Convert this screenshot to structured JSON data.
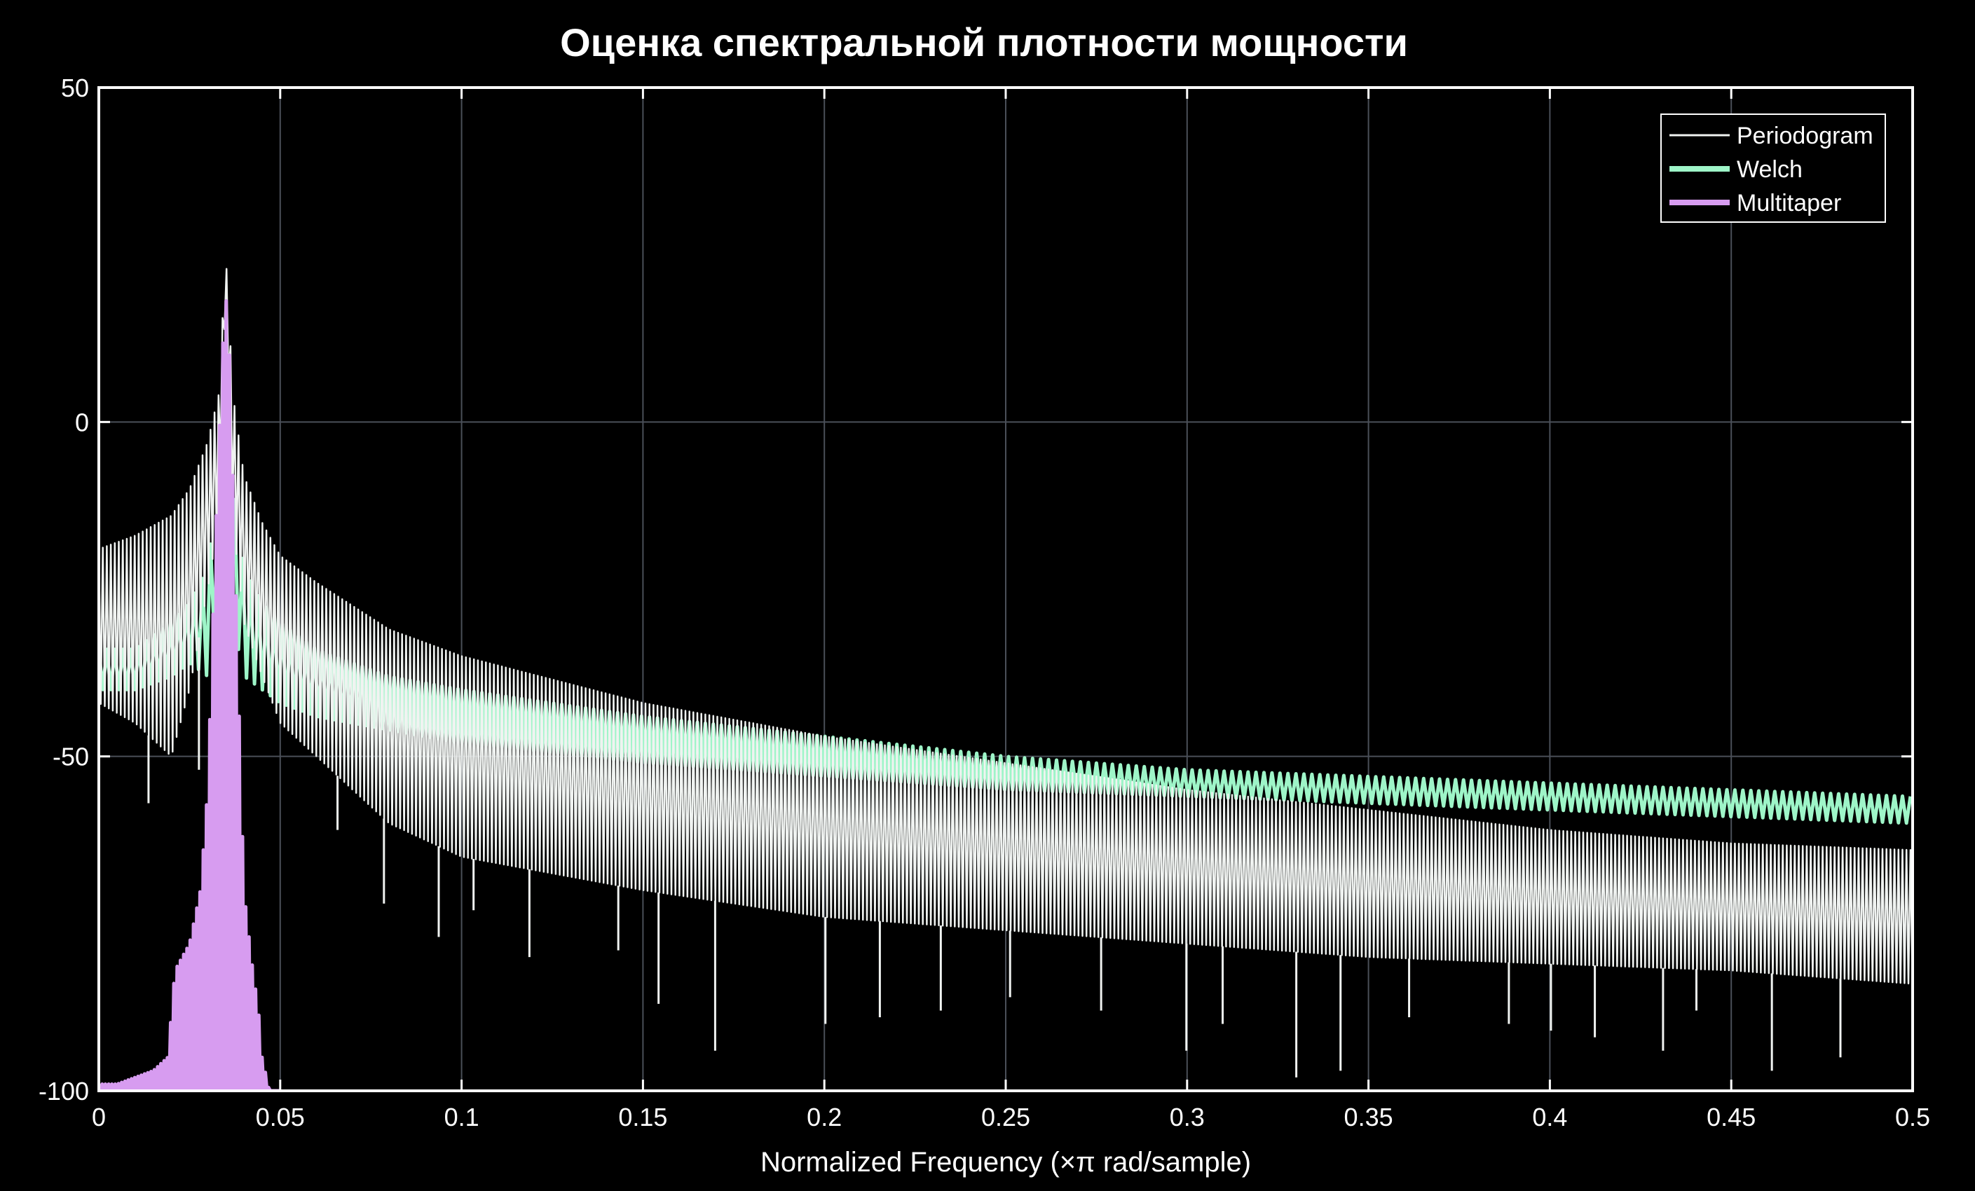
{
  "colors": {
    "background": "#000000",
    "periodogram": "#f0f3f1",
    "welch": "#9ef5c8",
    "multitaper": "#d79cf0",
    "grid": "#4a4f58",
    "axes": "#ffffff"
  },
  "chart_data": {
    "type": "line",
    "title": "Оценка спектральной плотности мощности",
    "xlabel": "Normalized Frequency  (×π rad/sample)",
    "ylabel": "",
    "xlim": [
      0,
      0.5
    ],
    "ylim": [
      -100,
      50
    ],
    "grid": true,
    "legend_position": "top-right",
    "x_ticks": [
      {
        "value": 0,
        "label": "0"
      },
      {
        "value": 0.05,
        "label": "0.05"
      },
      {
        "value": 0.1,
        "label": "0.1"
      },
      {
        "value": 0.15,
        "label": "0.15"
      },
      {
        "value": 0.2,
        "label": "0.2"
      },
      {
        "value": 0.25,
        "label": "0.25"
      },
      {
        "value": 0.3,
        "label": "0.3"
      },
      {
        "value": 0.35,
        "label": "0.35"
      },
      {
        "value": 0.4,
        "label": "0.4"
      },
      {
        "value": 0.45,
        "label": "0.45"
      },
      {
        "value": 0.5,
        "label": "0.5"
      }
    ],
    "y_ticks": [
      {
        "value": 50,
        "label": "50"
      },
      {
        "value": 0,
        "label": "0"
      },
      {
        "value": -50,
        "label": "-50"
      },
      {
        "value": -100,
        "label": "-100"
      }
    ],
    "series": [
      {
        "name": "Periodogram",
        "x": [
          0,
          0.01,
          0.02,
          0.025,
          0.03,
          0.033,
          0.035,
          0.037,
          0.04,
          0.045,
          0.05,
          0.06,
          0.08,
          0.1,
          0.15,
          0.2,
          0.25,
          0.3,
          0.35,
          0.4,
          0.45,
          0.5
        ],
        "upper": [
          -19,
          -17,
          -14,
          -10,
          -3,
          4,
          25,
          4,
          -8,
          -15,
          -20,
          -24,
          -31,
          -35,
          -42,
          -47,
          -51,
          -55,
          -58,
          -61,
          -63,
          -64
        ],
        "lower": [
          -42,
          -45,
          -50,
          -40,
          -25,
          -15,
          20,
          -15,
          -30,
          -38,
          -45,
          -50,
          -60,
          -65,
          -70,
          -74,
          -76,
          -78,
          -80,
          -81,
          -82,
          -84
        ],
        "nulls": [
          [
            0.0137,
            -57
          ],
          [
            0.0276,
            -52
          ],
          [
            0.0658,
            -61
          ],
          [
            0.0786,
            -72
          ],
          [
            0.0937,
            -77
          ],
          [
            0.1033,
            -73
          ],
          [
            0.1187,
            -80
          ],
          [
            0.1432,
            -79
          ],
          [
            0.1543,
            -87
          ],
          [
            0.1699,
            -94
          ],
          [
            0.2003,
            -90
          ],
          [
            0.2153,
            -89
          ],
          [
            0.2321,
            -88
          ],
          [
            0.2512,
            -86
          ],
          [
            0.2763,
            -88
          ],
          [
            0.2998,
            -94
          ],
          [
            0.3098,
            -90
          ],
          [
            0.3301,
            -98
          ],
          [
            0.3423,
            -97
          ],
          [
            0.3612,
            -89
          ],
          [
            0.3887,
            -90
          ],
          [
            0.4003,
            -91
          ],
          [
            0.4124,
            -92
          ],
          [
            0.4312,
            -94
          ],
          [
            0.4404,
            -88
          ],
          [
            0.4612,
            -97
          ],
          [
            0.4801,
            -95
          ],
          [
            0.4999,
            -88
          ]
        ]
      },
      {
        "name": "Welch",
        "x": [
          0,
          0.01,
          0.02,
          0.025,
          0.03,
          0.033,
          0.035,
          0.037,
          0.04,
          0.045,
          0.05,
          0.06,
          0.08,
          0.1,
          0.15,
          0.2,
          0.25,
          0.3,
          0.35,
          0.4,
          0.45,
          0.5
        ],
        "upper": [
          -34,
          -34,
          -30,
          -27,
          -22,
          -8,
          -3,
          -10,
          -22,
          -27,
          -30,
          -34,
          -38,
          -40,
          -44,
          -47,
          -50,
          -52,
          -53,
          -54,
          -55,
          -56
        ],
        "lower": [
          -40,
          -40,
          -38,
          -36,
          -38,
          -30,
          -30,
          -30,
          -38,
          -40,
          -42,
          -44,
          -46,
          -48,
          -51,
          -53,
          -55,
          -56,
          -57,
          -58,
          -59,
          -60
        ]
      },
      {
        "name": "Multitaper",
        "x": [
          0,
          0.005,
          0.01,
          0.015,
          0.019,
          0.021,
          0.025,
          0.028,
          0.03,
          0.032,
          0.034,
          0.035,
          0.036,
          0.038,
          0.04,
          0.042,
          0.044,
          0.045,
          0.047,
          0.05
        ],
        "upper": [
          -99,
          -99,
          -98,
          -97,
          -95,
          -82,
          -78,
          -70,
          -55,
          -20,
          10,
          19,
          10,
          -30,
          -70,
          -80,
          -88,
          -95,
          -100,
          -100
        ],
        "lower": [
          -101,
          -101,
          -100,
          -100,
          -100,
          -100,
          -100,
          -100,
          -100,
          -100,
          -100,
          -100,
          -100,
          -100,
          -100,
          -100,
          -100,
          -100,
          -100,
          -100
        ]
      }
    ]
  }
}
